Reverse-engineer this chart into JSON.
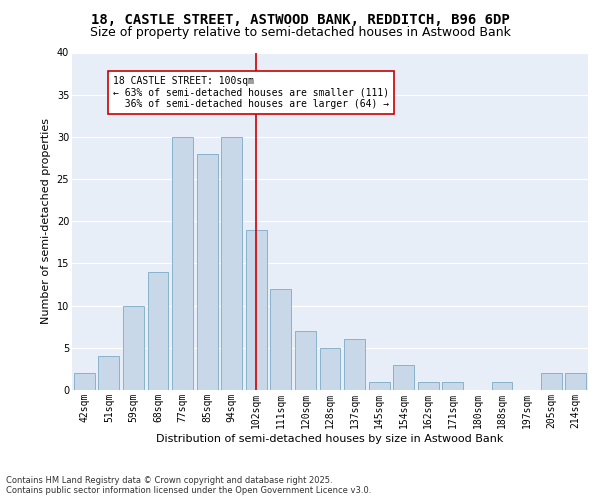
{
  "title_line1": "18, CASTLE STREET, ASTWOOD BANK, REDDITCH, B96 6DP",
  "title_line2": "Size of property relative to semi-detached houses in Astwood Bank",
  "xlabel": "Distribution of semi-detached houses by size in Astwood Bank",
  "ylabel": "Number of semi-detached properties",
  "categories": [
    "42sqm",
    "51sqm",
    "59sqm",
    "68sqm",
    "77sqm",
    "85sqm",
    "94sqm",
    "102sqm",
    "111sqm",
    "120sqm",
    "128sqm",
    "137sqm",
    "145sqm",
    "154sqm",
    "162sqm",
    "171sqm",
    "180sqm",
    "188sqm",
    "197sqm",
    "205sqm",
    "214sqm"
  ],
  "values": [
    2,
    4,
    10,
    14,
    30,
    28,
    30,
    19,
    12,
    7,
    5,
    6,
    1,
    3,
    1,
    1,
    0,
    1,
    0,
    2,
    2
  ],
  "bar_color": "#c8d8e8",
  "bar_edgecolor": "#7baac8",
  "highlight_index": 7,
  "highlight_color": "#cc0000",
  "annotation_text": "18 CASTLE STREET: 100sqm\n← 63% of semi-detached houses are smaller (111)\n  36% of semi-detached houses are larger (64) →",
  "annotation_boxcolor": "white",
  "annotation_edgecolor": "#cc0000",
  "ylim": [
    0,
    40
  ],
  "yticks": [
    0,
    5,
    10,
    15,
    20,
    25,
    30,
    35,
    40
  ],
  "background_color": "#e8eef8",
  "grid_color": "white",
  "footnote": "Contains HM Land Registry data © Crown copyright and database right 2025.\nContains public sector information licensed under the Open Government Licence v3.0.",
  "title_fontsize": 10,
  "subtitle_fontsize": 9,
  "annotation_fontsize": 7,
  "axis_label_fontsize": 8,
  "tick_fontsize": 7,
  "footnote_fontsize": 6
}
